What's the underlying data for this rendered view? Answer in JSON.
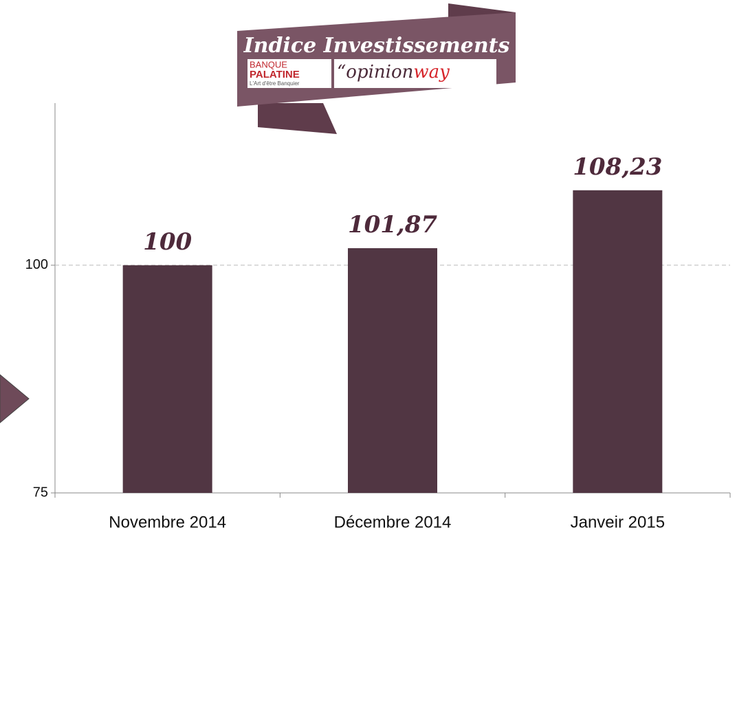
{
  "chart_data": {
    "type": "bar",
    "title": "Indice Investissements",
    "logos": {
      "bank_top": "BANQUE",
      "bank_name": "PALATINE",
      "bank_tagline": "L'Art d'être Banquier",
      "pollster_quote": "“opinion",
      "pollster_end": "way"
    },
    "categories": [
      "Novembre 2014",
      "Décembre 2014",
      "Janveir 2015"
    ],
    "values": [
      100,
      101.87,
      108.23
    ],
    "value_labels": [
      "100",
      "101,87",
      "108,23"
    ],
    "color": "#513643",
    "ylim": [
      75,
      117.8
    ],
    "yticks": [
      75,
      100
    ],
    "grid": true
  }
}
